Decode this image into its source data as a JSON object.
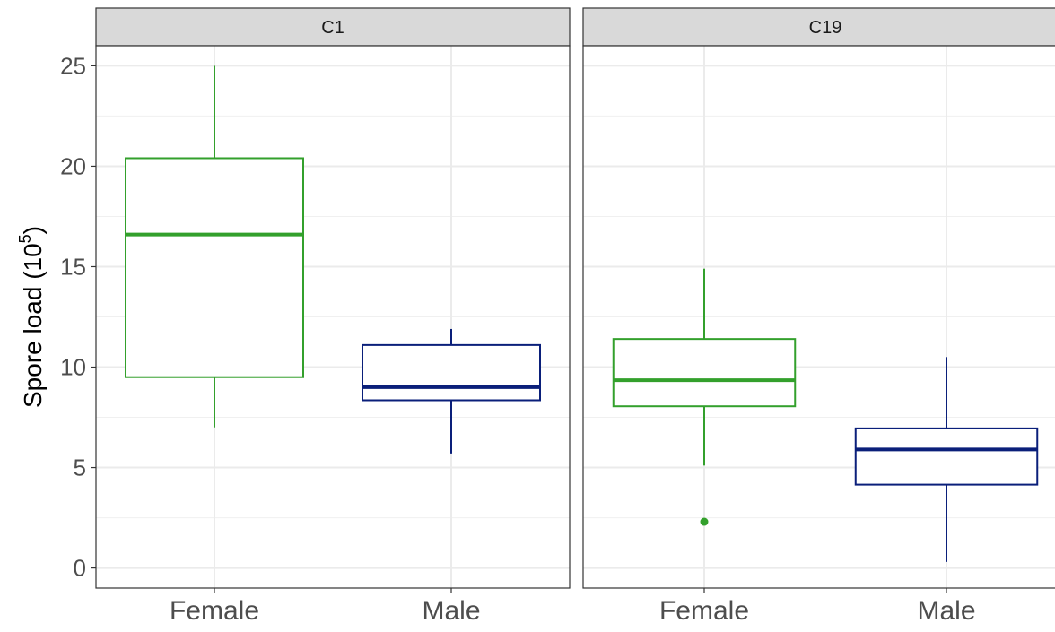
{
  "chart_data": {
    "type": "box",
    "ylabel": {
      "text": "Spore load (10",
      "superscript": "5",
      "close": ")"
    },
    "ylim": [
      -1,
      26
    ],
    "yticks": [
      0,
      5,
      10,
      15,
      20,
      25
    ],
    "categories": [
      "Female",
      "Male"
    ],
    "grid": true,
    "series_colors": {
      "Female": "#33a02c",
      "Male": "#0a1f7a"
    },
    "panels": [
      {
        "strip": "C1",
        "boxes": [
          {
            "category": "Female",
            "min": 7.0,
            "q1": 9.5,
            "median": 16.6,
            "q3": 20.4,
            "max": 25.0,
            "outliers": []
          },
          {
            "category": "Male",
            "min": 5.7,
            "q1": 8.35,
            "median": 9.0,
            "q3": 11.1,
            "max": 11.9,
            "outliers": []
          }
        ]
      },
      {
        "strip": "C19",
        "boxes": [
          {
            "category": "Female",
            "min": 5.1,
            "q1": 8.05,
            "median": 9.35,
            "q3": 11.4,
            "max": 14.9,
            "outliers": [
              2.3
            ]
          },
          {
            "category": "Male",
            "min": 0.3,
            "q1": 4.15,
            "median": 5.9,
            "q3": 6.95,
            "max": 10.5,
            "outliers": []
          }
        ]
      }
    ]
  }
}
